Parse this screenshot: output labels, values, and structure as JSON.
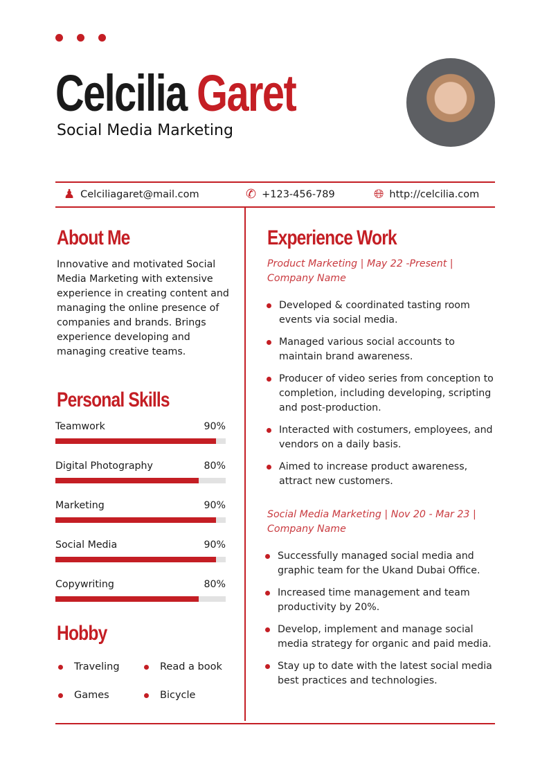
{
  "header": {
    "first_name": "Celcilia",
    "last_name": "Garet",
    "title": "Social Media Marketing"
  },
  "contact": {
    "email": "Celciliagaret@mail.com",
    "phone": "+123-456-789",
    "website": "http://celcilia.com"
  },
  "about": {
    "heading": "About Me",
    "text": "Innovative and motivated Social Media Marketing with extensive experience in creating content and managing the online presence of companies and brands. Brings experience developing and managing creative teams."
  },
  "skills": {
    "heading": "Personal Skills",
    "items": [
      {
        "label": "Teamwork",
        "percent": "90%",
        "value": 90
      },
      {
        "label": "Digital Photography",
        "percent": "80%",
        "value": 80
      },
      {
        "label": "Marketing",
        "percent": "90%",
        "value": 90
      },
      {
        "label": "Social Media",
        "percent": "90%",
        "value": 90
      },
      {
        "label": "Copywriting",
        "percent": "80%",
        "value": 80
      }
    ]
  },
  "hobby": {
    "heading": "Hobby",
    "items": [
      "Traveling",
      "Read a book",
      "Games",
      "Bicycle"
    ]
  },
  "experience": {
    "heading": "Experience Work",
    "jobs": [
      {
        "title": "Product Marketing | May 22 -Present | Company Name",
        "bullets": [
          "Developed & coordinated tasting room events via social media.",
          "Managed various social accounts to maintain brand awareness.",
          "Producer of video series from conception to completion, including developing, scripting and post-production.",
          "Interacted with costumers, employees, and vendors on a daily basis.",
          "Aimed to increase product awareness, attract new customers."
        ]
      },
      {
        "title": "Social Media Marketing | Nov 20 - Mar 23 | Company Name",
        "bullets": [
          "Successfully managed social media and graphic team for the Ukand Dubai Office.",
          "Increased time management and team productivity by 20%.",
          "Develop, implement and manage social media strategy for organic and paid media.",
          "Stay up to date with the latest social media best practices and technologies."
        ]
      }
    ]
  },
  "colors": {
    "accent": "#c41e24",
    "track": "#e2e2e2"
  }
}
